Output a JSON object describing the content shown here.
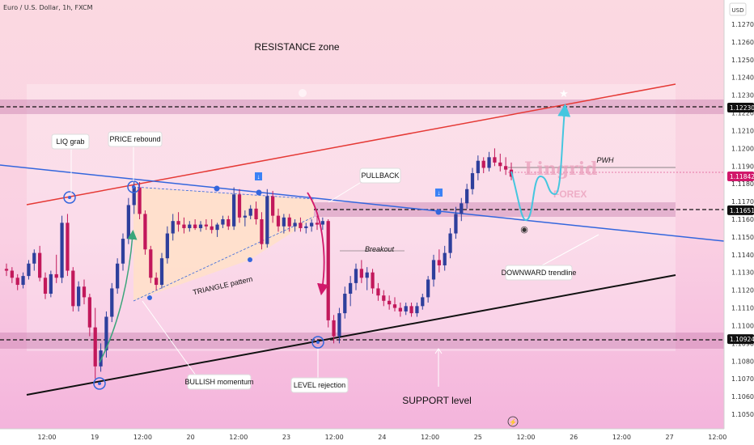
{
  "chart_data": {
    "type": "candlestick",
    "title": "Euro / U.S. Dollar, 1h, FXCM",
    "currency_label": "USD",
    "y_ticks": [
      1.127,
      1.126,
      1.125,
      1.124,
      1.123,
      1.122,
      1.121,
      1.12,
      1.119,
      1.118,
      1.117,
      1.116,
      1.115,
      1.114,
      1.113,
      1.112,
      1.111,
      1.11,
      1.109,
      1.108,
      1.107,
      1.106,
      1.105
    ],
    "y_tick_labels": [
      "1.12700",
      "1.12600",
      "1.12500",
      "1.12400",
      "1.12300",
      "1.12200",
      "1.12100",
      "1.12000",
      "1.11900",
      "1.11800",
      "1.11700",
      "1.11600",
      "1.11500",
      "1.11400",
      "1.11300",
      "1.11200",
      "1.11100",
      "1.11000",
      "1.10900",
      "1.10800",
      "1.10700",
      "1.10600",
      "1.10500"
    ],
    "ylim": [
      1.1042,
      1.128
    ],
    "x_ticks": [
      "12:00",
      "19",
      "12:00",
      "20",
      "12:00",
      "23",
      "12:00",
      "24",
      "12:00",
      "25",
      "12:00",
      "26",
      "12:00",
      "27",
      "12:00"
    ],
    "price_labels": [
      {
        "value": "1.12230",
        "price": 1.1223,
        "style": "dark"
      },
      {
        "value": "1.11842",
        "price": 1.11842,
        "style": "red"
      },
      {
        "value": "1.11651",
        "price": 1.11651,
        "style": "dark"
      },
      {
        "value": "1.10924",
        "price": 1.10924,
        "style": "dark"
      }
    ],
    "annotations": {
      "resistance_zone": "RESISTANCE zone",
      "liq_grab": "LIQ grab",
      "price_rebound": "PRICE rebound",
      "pullback": "PULLBACK",
      "triangle_pattern": "TRIANGLE pattern",
      "breakout": "Breakout",
      "pwh": "PWH",
      "downward_trendline": "DOWNWARD trendline",
      "bullish_momentum": "BULLISH momentum",
      "level_rejection": "LEVEL rejection",
      "support_level": "SUPPORT level"
    },
    "watermark": {
      "line1": "Lingrid",
      "line2": "FOREX"
    },
    "candle_colors": {
      "up": "#2e3f9c",
      "down": "#c2185b"
    },
    "colors": {
      "resistance_line": "#e53935",
      "downtrend_line": "#3366dd",
      "support_line": "#111111",
      "zone_band": "#c87fb0",
      "projection": "#45c6df",
      "momentum_arrow": "#3aa57a",
      "pullback_arrow": "#d1186b"
    },
    "candles": [
      {
        "o": 1.1132,
        "h": 1.1135,
        "l": 1.1128,
        "c": 1.1131
      },
      {
        "o": 1.1131,
        "h": 1.1133,
        "l": 1.1124,
        "c": 1.1127
      },
      {
        "o": 1.1127,
        "h": 1.1129,
        "l": 1.112,
        "c": 1.1123
      },
      {
        "o": 1.1123,
        "h": 1.113,
        "l": 1.1121,
        "c": 1.1128
      },
      {
        "o": 1.1128,
        "h": 1.1137,
        "l": 1.1126,
        "c": 1.1135
      },
      {
        "o": 1.1135,
        "h": 1.1143,
        "l": 1.1131,
        "c": 1.1141
      },
      {
        "o": 1.1141,
        "h": 1.1145,
        "l": 1.1125,
        "c": 1.1127
      },
      {
        "o": 1.1127,
        "h": 1.113,
        "l": 1.1115,
        "c": 1.1118
      },
      {
        "o": 1.1118,
        "h": 1.1131,
        "l": 1.1116,
        "c": 1.1129
      },
      {
        "o": 1.1129,
        "h": 1.114,
        "l": 1.1124,
        "c": 1.1127
      },
      {
        "o": 1.1127,
        "h": 1.1162,
        "l": 1.1124,
        "c": 1.1158
      },
      {
        "o": 1.1158,
        "h": 1.1163,
        "l": 1.1128,
        "c": 1.1131
      },
      {
        "o": 1.1131,
        "h": 1.1133,
        "l": 1.1108,
        "c": 1.1111
      },
      {
        "o": 1.1111,
        "h": 1.1125,
        "l": 1.1108,
        "c": 1.1122
      },
      {
        "o": 1.1122,
        "h": 1.1126,
        "l": 1.1112,
        "c": 1.1116
      },
      {
        "o": 1.1116,
        "h": 1.1118,
        "l": 1.1094,
        "c": 1.1099
      },
      {
        "o": 1.1099,
        "h": 1.111,
        "l": 1.107,
        "c": 1.1077
      },
      {
        "o": 1.1077,
        "h": 1.109,
        "l": 1.1074,
        "c": 1.1086
      },
      {
        "o": 1.1086,
        "h": 1.1108,
        "l": 1.1082,
        "c": 1.1105
      },
      {
        "o": 1.1105,
        "h": 1.1124,
        "l": 1.1102,
        "c": 1.1121
      },
      {
        "o": 1.1121,
        "h": 1.1138,
        "l": 1.1118,
        "c": 1.1135
      },
      {
        "o": 1.1135,
        "h": 1.1152,
        "l": 1.1131,
        "c": 1.1149
      },
      {
        "o": 1.1149,
        "h": 1.1172,
        "l": 1.1146,
        "c": 1.1168
      },
      {
        "o": 1.1168,
        "h": 1.1181,
        "l": 1.1163,
        "c": 1.1178
      },
      {
        "o": 1.1178,
        "h": 1.1181,
        "l": 1.116,
        "c": 1.1163
      },
      {
        "o": 1.1163,
        "h": 1.1165,
        "l": 1.114,
        "c": 1.1143
      },
      {
        "o": 1.1143,
        "h": 1.1145,
        "l": 1.1124,
        "c": 1.1127
      },
      {
        "o": 1.1127,
        "h": 1.113,
        "l": 1.112,
        "c": 1.1123
      },
      {
        "o": 1.1123,
        "h": 1.1141,
        "l": 1.1121,
        "c": 1.1138
      },
      {
        "o": 1.1138,
        "h": 1.1156,
        "l": 1.1135,
        "c": 1.1152
      },
      {
        "o": 1.1152,
        "h": 1.1163,
        "l": 1.1148,
        "c": 1.1159
      },
      {
        "o": 1.1159,
        "h": 1.1164,
        "l": 1.1153,
        "c": 1.1157
      },
      {
        "o": 1.1157,
        "h": 1.1161,
        "l": 1.1152,
        "c": 1.1155
      },
      {
        "o": 1.1155,
        "h": 1.1159,
        "l": 1.1153,
        "c": 1.1157
      },
      {
        "o": 1.1157,
        "h": 1.116,
        "l": 1.1154,
        "c": 1.1155
      },
      {
        "o": 1.1155,
        "h": 1.1159,
        "l": 1.1153,
        "c": 1.1157
      },
      {
        "o": 1.1157,
        "h": 1.116,
        "l": 1.1154,
        "c": 1.1156
      },
      {
        "o": 1.1156,
        "h": 1.116,
        "l": 1.1152,
        "c": 1.1154
      },
      {
        "o": 1.1154,
        "h": 1.1158,
        "l": 1.115,
        "c": 1.1157
      },
      {
        "o": 1.1157,
        "h": 1.1162,
        "l": 1.1155,
        "c": 1.116
      },
      {
        "o": 1.116,
        "h": 1.1162,
        "l": 1.1154,
        "c": 1.1156
      },
      {
        "o": 1.1156,
        "h": 1.1178,
        "l": 1.1154,
        "c": 1.1174
      },
      {
        "o": 1.1174,
        "h": 1.1177,
        "l": 1.1158,
        "c": 1.1161
      },
      {
        "o": 1.1161,
        "h": 1.1165,
        "l": 1.1156,
        "c": 1.1162
      },
      {
        "o": 1.1162,
        "h": 1.1168,
        "l": 1.116,
        "c": 1.1166
      },
      {
        "o": 1.1166,
        "h": 1.117,
        "l": 1.1157,
        "c": 1.116
      },
      {
        "o": 1.116,
        "h": 1.1164,
        "l": 1.1143,
        "c": 1.1146
      },
      {
        "o": 1.1146,
        "h": 1.1177,
        "l": 1.1144,
        "c": 1.1173
      },
      {
        "o": 1.1173,
        "h": 1.1176,
        "l": 1.1158,
        "c": 1.1162
      },
      {
        "o": 1.1162,
        "h": 1.1166,
        "l": 1.1153,
        "c": 1.1156
      },
      {
        "o": 1.1156,
        "h": 1.1163,
        "l": 1.1152,
        "c": 1.1161
      },
      {
        "o": 1.1161,
        "h": 1.1163,
        "l": 1.1153,
        "c": 1.1156
      },
      {
        "o": 1.1156,
        "h": 1.116,
        "l": 1.1153,
        "c": 1.1158
      },
      {
        "o": 1.1158,
        "h": 1.1161,
        "l": 1.1153,
        "c": 1.1155
      },
      {
        "o": 1.1155,
        "h": 1.1158,
        "l": 1.1152,
        "c": 1.1156
      },
      {
        "o": 1.1156,
        "h": 1.116,
        "l": 1.1153,
        "c": 1.1158
      },
      {
        "o": 1.1158,
        "h": 1.1162,
        "l": 1.1154,
        "c": 1.1157
      },
      {
        "o": 1.1157,
        "h": 1.1161,
        "l": 1.1154,
        "c": 1.1159
      },
      {
        "o": 1.1159,
        "h": 1.116,
        "l": 1.1099,
        "c": 1.1103
      },
      {
        "o": 1.1103,
        "h": 1.1106,
        "l": 1.109,
        "c": 1.1094
      },
      {
        "o": 1.1094,
        "h": 1.111,
        "l": 1.109,
        "c": 1.1107
      },
      {
        "o": 1.1107,
        "h": 1.1122,
        "l": 1.1104,
        "c": 1.1118
      },
      {
        "o": 1.1118,
        "h": 1.1128,
        "l": 1.1111,
        "c": 1.1124
      },
      {
        "o": 1.1124,
        "h": 1.1135,
        "l": 1.112,
        "c": 1.1132
      },
      {
        "o": 1.1132,
        "h": 1.1137,
        "l": 1.1124,
        "c": 1.1127
      },
      {
        "o": 1.1127,
        "h": 1.1133,
        "l": 1.112,
        "c": 1.113
      },
      {
        "o": 1.113,
        "h": 1.1132,
        "l": 1.1118,
        "c": 1.1121
      },
      {
        "o": 1.1121,
        "h": 1.1124,
        "l": 1.1114,
        "c": 1.1117
      },
      {
        "o": 1.1117,
        "h": 1.112,
        "l": 1.1111,
        "c": 1.1114
      },
      {
        "o": 1.1114,
        "h": 1.1117,
        "l": 1.1109,
        "c": 1.1112
      },
      {
        "o": 1.1112,
        "h": 1.1116,
        "l": 1.1108,
        "c": 1.111
      },
      {
        "o": 1.111,
        "h": 1.1113,
        "l": 1.1105,
        "c": 1.1108
      },
      {
        "o": 1.1108,
        "h": 1.1113,
        "l": 1.1106,
        "c": 1.1111
      },
      {
        "o": 1.1111,
        "h": 1.1113,
        "l": 1.1105,
        "c": 1.1107
      },
      {
        "o": 1.1107,
        "h": 1.1113,
        "l": 1.1105,
        "c": 1.1111
      },
      {
        "o": 1.1111,
        "h": 1.1118,
        "l": 1.1109,
        "c": 1.1116
      },
      {
        "o": 1.1116,
        "h": 1.1128,
        "l": 1.1113,
        "c": 1.1126
      },
      {
        "o": 1.1126,
        "h": 1.114,
        "l": 1.1122,
        "c": 1.1137
      },
      {
        "o": 1.1137,
        "h": 1.1143,
        "l": 1.113,
        "c": 1.1134
      },
      {
        "o": 1.1134,
        "h": 1.1145,
        "l": 1.1131,
        "c": 1.1141
      },
      {
        "o": 1.1141,
        "h": 1.1155,
        "l": 1.1138,
        "c": 1.1152
      },
      {
        "o": 1.1152,
        "h": 1.1167,
        "l": 1.1149,
        "c": 1.1163
      },
      {
        "o": 1.1163,
        "h": 1.1172,
        "l": 1.1159,
        "c": 1.1169
      },
      {
        "o": 1.1169,
        "h": 1.118,
        "l": 1.1166,
        "c": 1.1177
      },
      {
        "o": 1.1177,
        "h": 1.1189,
        "l": 1.1174,
        "c": 1.1186
      },
      {
        "o": 1.1186,
        "h": 1.1196,
        "l": 1.1182,
        "c": 1.1193
      },
      {
        "o": 1.1193,
        "h": 1.1195,
        "l": 1.1186,
        "c": 1.1189
      },
      {
        "o": 1.1189,
        "h": 1.1198,
        "l": 1.1187,
        "c": 1.1195
      },
      {
        "o": 1.1195,
        "h": 1.12,
        "l": 1.119,
        "c": 1.1192
      },
      {
        "o": 1.1192,
        "h": 1.1197,
        "l": 1.1187,
        "c": 1.119
      },
      {
        "o": 1.119,
        "h": 1.1195,
        "l": 1.1185,
        "c": 1.1188
      },
      {
        "o": 1.1188,
        "h": 1.1192,
        "l": 1.1182,
        "c": 1.1184
      }
    ]
  }
}
